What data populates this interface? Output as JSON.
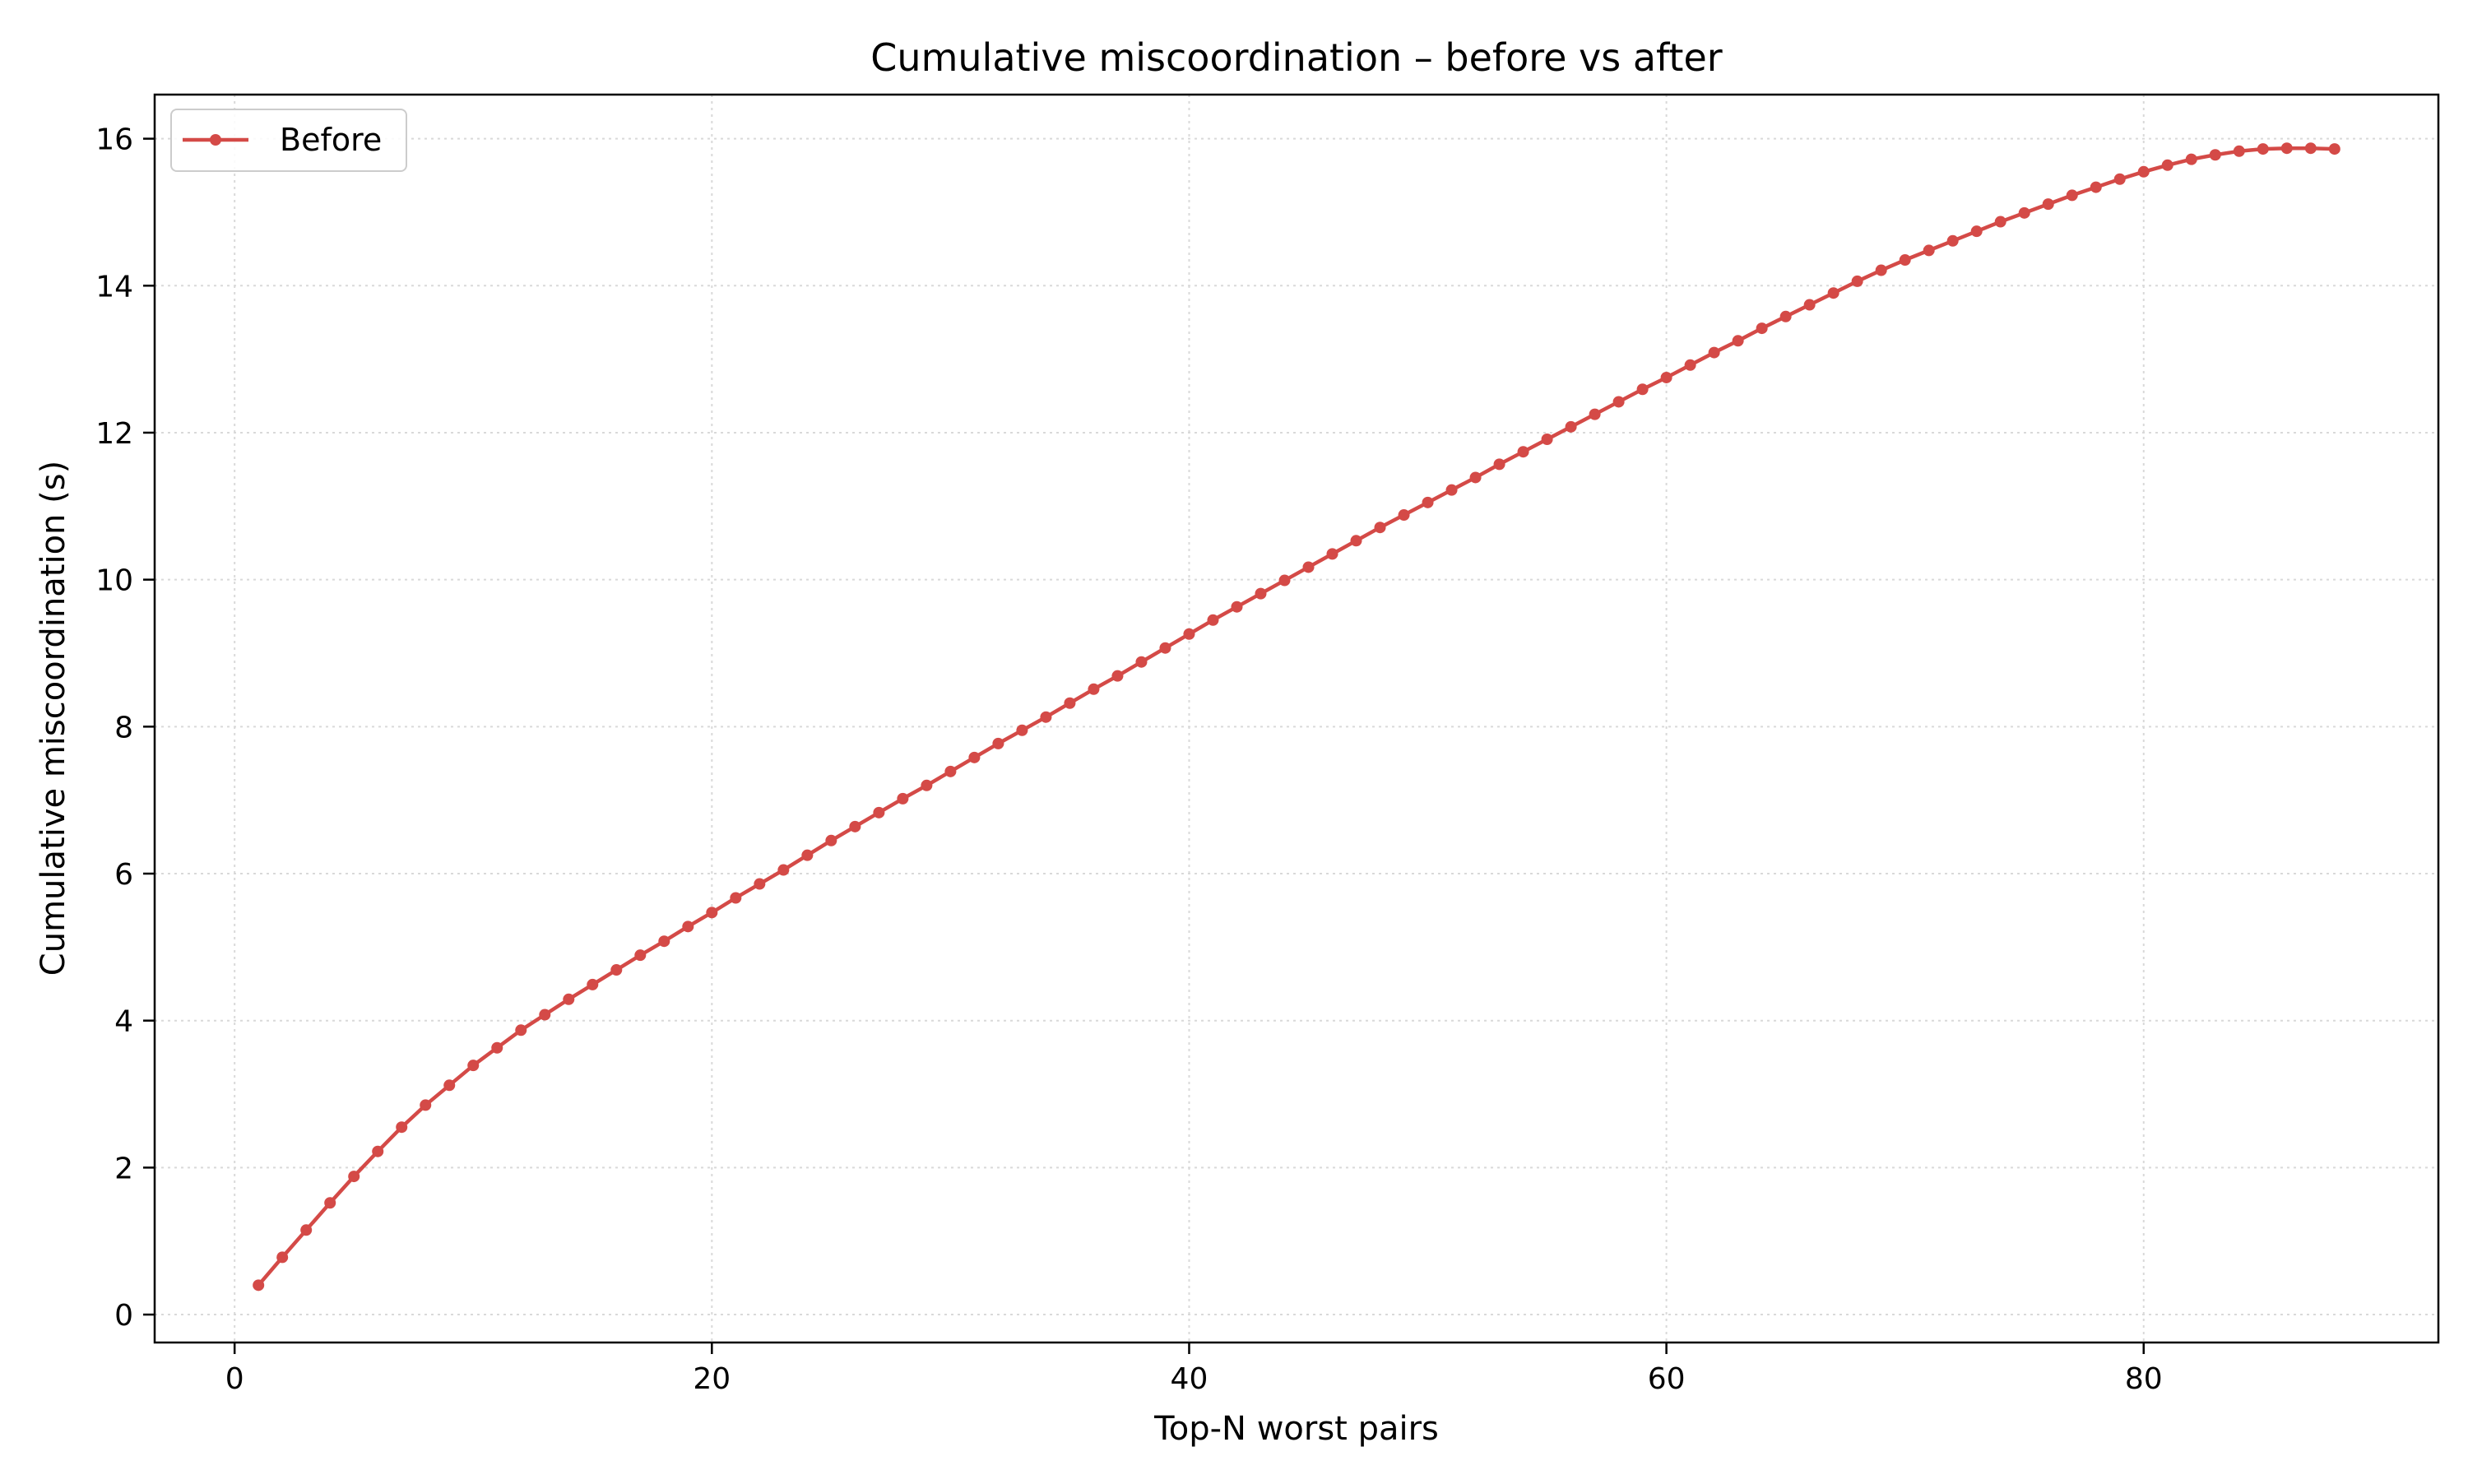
{
  "chart_data": {
    "type": "line",
    "title": "Cumulative miscoordination – before vs after",
    "xlabel": "Top-N worst pairs",
    "ylabel": "Cumulative miscoordination (s)",
    "xlim": [
      -3.35,
      92.35
    ],
    "ylim": [
      -0.38,
      16.6
    ],
    "x_ticks": [
      0,
      20,
      40,
      60,
      80
    ],
    "y_ticks": [
      0,
      2,
      4,
      6,
      8,
      10,
      12,
      14,
      16
    ],
    "grid": true,
    "legend_position": "top-left",
    "series": [
      {
        "name": "Before",
        "color": "#d44a47",
        "marker": "circle",
        "x": [
          1,
          2,
          3,
          4,
          5,
          6,
          7,
          8,
          9,
          10,
          11,
          12,
          13,
          14,
          15,
          16,
          17,
          18,
          19,
          20,
          21,
          22,
          23,
          24,
          25,
          26,
          27,
          28,
          29,
          30,
          31,
          32,
          33,
          34,
          35,
          36,
          37,
          38,
          39,
          40,
          41,
          42,
          43,
          44,
          45,
          46,
          47,
          48,
          49,
          50,
          51,
          52,
          53,
          54,
          55,
          56,
          57,
          58,
          59,
          60,
          61,
          62,
          63,
          64,
          65,
          66,
          67,
          68,
          69,
          70,
          71,
          72,
          73,
          74,
          75,
          76,
          77,
          78,
          79,
          80,
          81,
          82,
          83,
          84,
          85,
          86,
          87,
          88
        ],
        "y": [
          0.4,
          0.78,
          1.15,
          1.52,
          1.88,
          2.22,
          2.55,
          2.85,
          3.12,
          3.39,
          3.63,
          3.87,
          4.08,
          4.29,
          4.49,
          4.69,
          4.89,
          5.08,
          5.28,
          5.47,
          5.67,
          5.86,
          6.05,
          6.25,
          6.45,
          6.64,
          6.83,
          7.02,
          7.2,
          7.39,
          7.58,
          7.77,
          7.95,
          8.13,
          8.32,
          8.51,
          8.69,
          8.88,
          9.07,
          9.26,
          9.45,
          9.63,
          9.81,
          9.99,
          10.17,
          10.35,
          10.53,
          10.71,
          10.88,
          11.05,
          11.22,
          11.39,
          11.57,
          11.74,
          11.91,
          12.08,
          12.25,
          12.42,
          12.59,
          12.75,
          12.92,
          13.09,
          13.25,
          13.42,
          13.58,
          13.74,
          13.9,
          14.06,
          14.21,
          14.35,
          14.48,
          14.61,
          14.74,
          14.87,
          14.99,
          15.11,
          15.23,
          15.34,
          15.45,
          15.55,
          15.64,
          15.72,
          15.78,
          15.83,
          15.86,
          15.87,
          15.87,
          15.86
        ]
      }
    ]
  }
}
